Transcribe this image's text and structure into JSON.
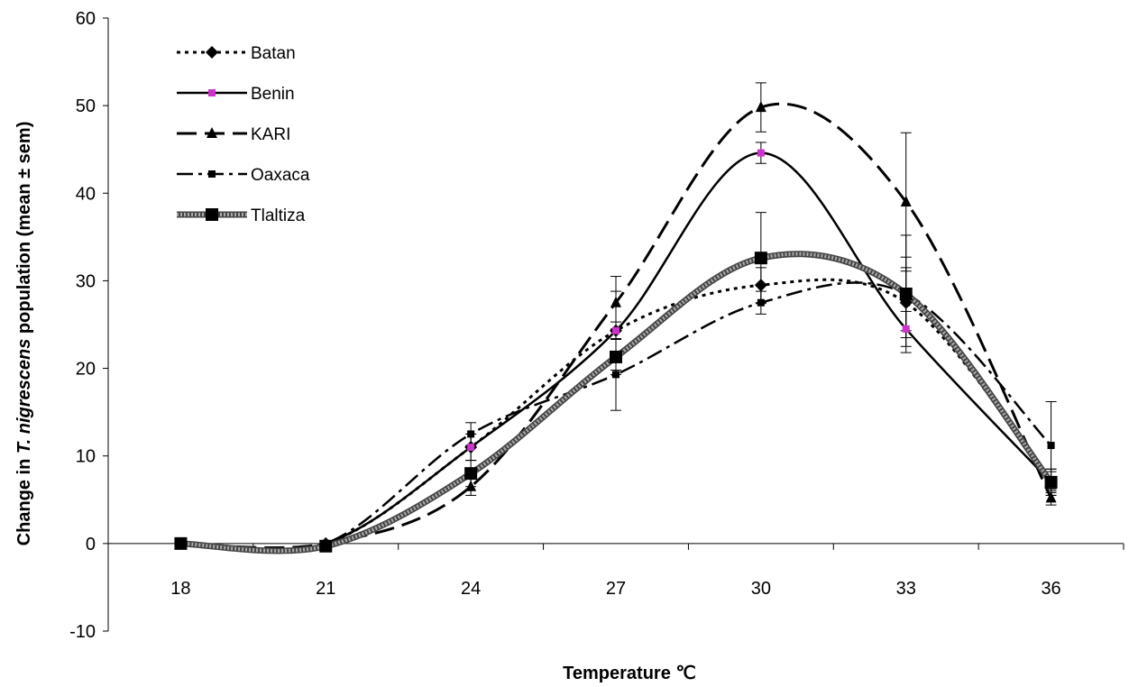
{
  "chart_data": {
    "type": "line",
    "xlabel": "Temperature ℃",
    "ylabel_parts": [
      "Change in ",
      "T.",
      " ",
      "nigrescens",
      " population (mean ± sem)"
    ],
    "x": [
      18,
      21,
      24,
      27,
      30,
      33,
      36
    ],
    "xlim": [
      16.5,
      37.5
    ],
    "ylim": [
      -10,
      60
    ],
    "y_ticks": [
      -10,
      0,
      10,
      20,
      30,
      40,
      50,
      60
    ],
    "grid": false,
    "legend_position": "top-left",
    "series": [
      {
        "name": "Batan",
        "style": "dotted",
        "marker": "diamond",
        "color": "#000000",
        "values": [
          0,
          0,
          11,
          24.3,
          29.5,
          27.5,
          7
        ],
        "errors": [
          0,
          0,
          1.5,
          4.5,
          2,
          4,
          1.5
        ]
      },
      {
        "name": "Benin",
        "style": "solid",
        "marker": "square-small",
        "color": "#000000",
        "marker_color": "#cc33cc",
        "values": [
          0,
          0,
          11,
          24.3,
          44.6,
          24.5,
          7
        ],
        "errors": [
          0,
          0,
          1.5,
          1,
          1.2,
          2,
          1.5
        ]
      },
      {
        "name": "KARI",
        "style": "dashed",
        "marker": "triangle",
        "color": "#000000",
        "values": [
          0,
          0,
          6.5,
          27.5,
          49.8,
          39,
          5.2
        ],
        "errors": [
          0,
          0,
          1,
          3,
          2.8,
          7.9,
          0.8
        ]
      },
      {
        "name": "Oaxaca",
        "style": "dashdot",
        "marker": "square-small",
        "color": "#000000",
        "values": [
          0,
          0,
          12.5,
          19.3,
          27.5,
          28.5,
          11.2
        ],
        "errors": [
          0,
          0,
          1.3,
          4.1,
          1.3,
          4.2,
          5
        ]
      },
      {
        "name": "Tlaltiza",
        "style": "thick",
        "marker": "square",
        "color": "#777777",
        "values": [
          0,
          -0.3,
          8,
          21.3,
          32.6,
          28.5,
          7
        ],
        "errors": [
          0,
          0,
          1.5,
          2,
          5.2,
          6.7,
          1.2
        ]
      }
    ]
  }
}
